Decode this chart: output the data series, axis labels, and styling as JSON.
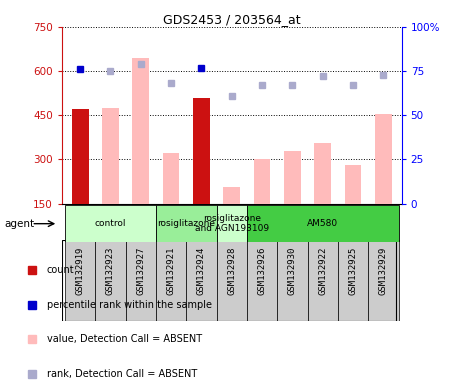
{
  "title": "GDS2453 / 203564_at",
  "samples": [
    "GSM132919",
    "GSM132923",
    "GSM132927",
    "GSM132921",
    "GSM132924",
    "GSM132928",
    "GSM132926",
    "GSM132930",
    "GSM132922",
    "GSM132925",
    "GSM132929"
  ],
  "bar_values": [
    470,
    475,
    645,
    320,
    510,
    205,
    300,
    330,
    355,
    280,
    455
  ],
  "bar_present": [
    true,
    false,
    false,
    false,
    true,
    false,
    false,
    false,
    false,
    false,
    false
  ],
  "rank_values": [
    76,
    75,
    79,
    68,
    77,
    61,
    67,
    67,
    72,
    67,
    73
  ],
  "rank_present": [
    true,
    false,
    false,
    false,
    true,
    false,
    false,
    false,
    false,
    false,
    false
  ],
  "ylim_left": [
    150,
    750
  ],
  "ylim_right": [
    0,
    100
  ],
  "yticks_left": [
    150,
    300,
    450,
    600,
    750
  ],
  "yticks_right": [
    0,
    25,
    50,
    75,
    100
  ],
  "agents": [
    {
      "label": "control",
      "start": 0,
      "end": 3,
      "color": "#ccffcc"
    },
    {
      "label": "rosiglitazone",
      "start": 3,
      "end": 5,
      "color": "#99ee99"
    },
    {
      "label": "rosiglitazone\nand AGN193109",
      "start": 5,
      "end": 6,
      "color": "#ccffcc"
    },
    {
      "label": "AM580",
      "start": 6,
      "end": 11,
      "color": "#44cc44"
    }
  ],
  "bar_color_present": "#cc1111",
  "bar_color_absent": "#ffbbbb",
  "dot_color_present": "#0000cc",
  "dot_color_absent": "#aaaacc",
  "bar_width": 0.55,
  "xlabel_bg": "#cccccc"
}
